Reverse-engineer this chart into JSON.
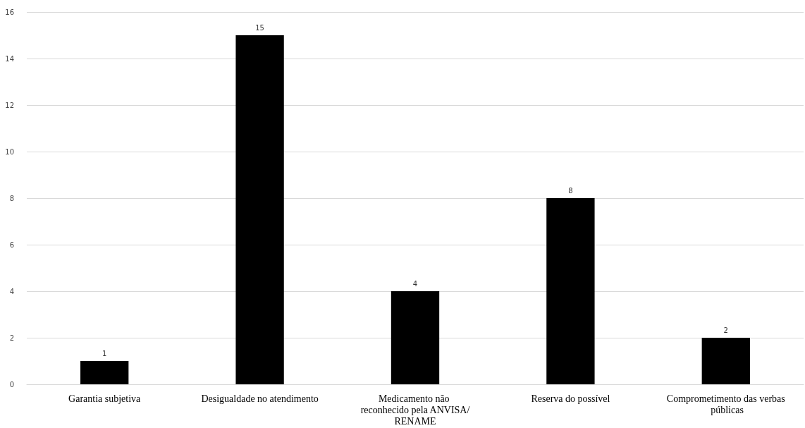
{
  "chart_data": {
    "type": "bar",
    "categories": [
      "Garantia subjetiva",
      "Desigualdade no atendimento",
      "Medicamento não reconhecido pela ANVISA/RENAME",
      "Reserva do possível",
      "Comprometimento das verbas públicas"
    ],
    "values": [
      1,
      15,
      4,
      8,
      2
    ],
    "color": "#000000",
    "ylim": [
      0,
      16
    ],
    "yticks": [
      0,
      2,
      4,
      6,
      8,
      10,
      12,
      14,
      16
    ],
    "grid": "y",
    "data_labels": true
  }
}
